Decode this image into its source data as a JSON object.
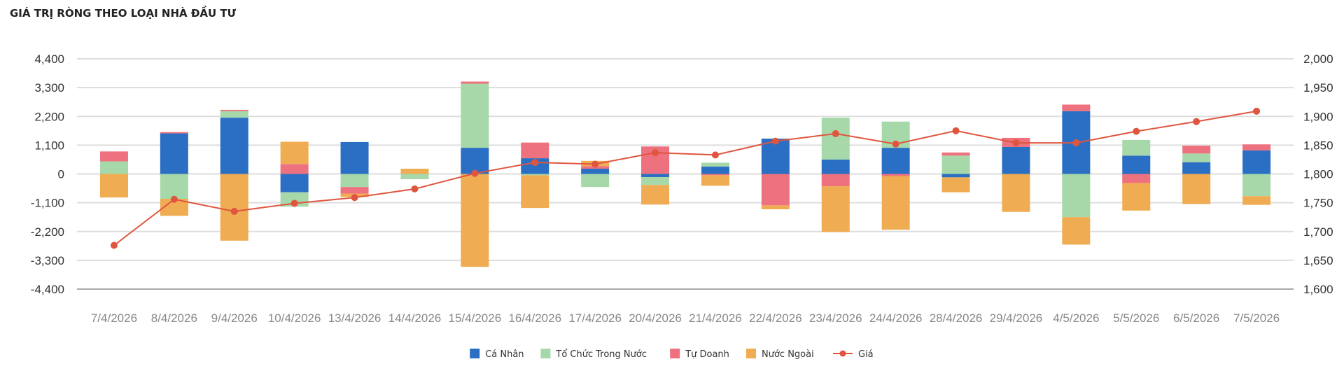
{
  "chart_data": {
    "type": "bar",
    "title": "GIÁ TRỊ RÒNG THEO LOẠI NHÀ ĐẦU TƯ",
    "categories": [
      "7/4/2026",
      "8/4/2026",
      "9/4/2026",
      "10/4/2026",
      "13/4/2026",
      "14/4/2026",
      "15/4/2026",
      "16/4/2026",
      "17/4/2026",
      "20/4/2026",
      "21/4/2026",
      "22/4/2026",
      "23/4/2026",
      "24/4/2026",
      "28/4/2026",
      "29/4/2026",
      "4/5/2026",
      "5/5/2026",
      "6/5/2026",
      "7/5/2026"
    ],
    "yleft": {
      "ylim": [
        -4400,
        4400
      ],
      "ticks": [
        "4,400",
        "3,300",
        "2,200",
        "1,100",
        "0",
        "-1,100",
        "-2,200",
        "-3,300",
        "-4,400"
      ]
    },
    "yright": {
      "ylim": [
        1600,
        2000
      ],
      "ticks": [
        "2,000",
        "1,950",
        "1,900",
        "1,850",
        "1,800",
        "1,750",
        "1,700",
        "1,650",
        "1,600"
      ]
    },
    "series": [
      {
        "name": "Cá Nhân",
        "color": "#2a6fc4",
        "kind": "bar",
        "values": [
          0,
          1550,
          2150,
          -700,
          1220,
          0,
          1000,
          600,
          200,
          -120,
          280,
          1350,
          550,
          1000,
          -130,
          1030,
          2400,
          700,
          450,
          900
        ]
      },
      {
        "name": "Tổ Chức Trong Nước",
        "color": "#a7d8a9",
        "kind": "bar",
        "values": [
          480,
          -950,
          250,
          -550,
          -500,
          -200,
          2450,
          -50,
          -500,
          -300,
          150,
          0,
          1600,
          1000,
          700,
          0,
          -1650,
          600,
          330,
          -850
        ]
      },
      {
        "name": "Tự Doanh",
        "color": "#ee717f",
        "kind": "bar",
        "values": [
          380,
          50,
          50,
          380,
          -250,
          0,
          80,
          600,
          100,
          1050,
          -50,
          -1200,
          -470,
          -80,
          120,
          350,
          250,
          -350,
          300,
          230
        ]
      },
      {
        "name": "Nước Ngoài",
        "color": "#efac52",
        "kind": "bar",
        "values": [
          -900,
          -650,
          -2550,
          850,
          -130,
          200,
          -3550,
          -1250,
          200,
          -750,
          -400,
          -150,
          -1750,
          -2050,
          -570,
          -1450,
          -1050,
          -1050,
          -1150,
          -330
        ]
      },
      {
        "name": "Giá",
        "color": "#e0553f",
        "kind": "line",
        "values": [
          1676,
          1756,
          1735,
          1749,
          1759,
          1774,
          1801,
          1820,
          1817,
          1837,
          1833,
          1857,
          1870,
          1852,
          1875,
          1854,
          1854,
          1874,
          1891,
          1909
        ]
      }
    ],
    "legend": "bottom-center",
    "grid": true
  }
}
